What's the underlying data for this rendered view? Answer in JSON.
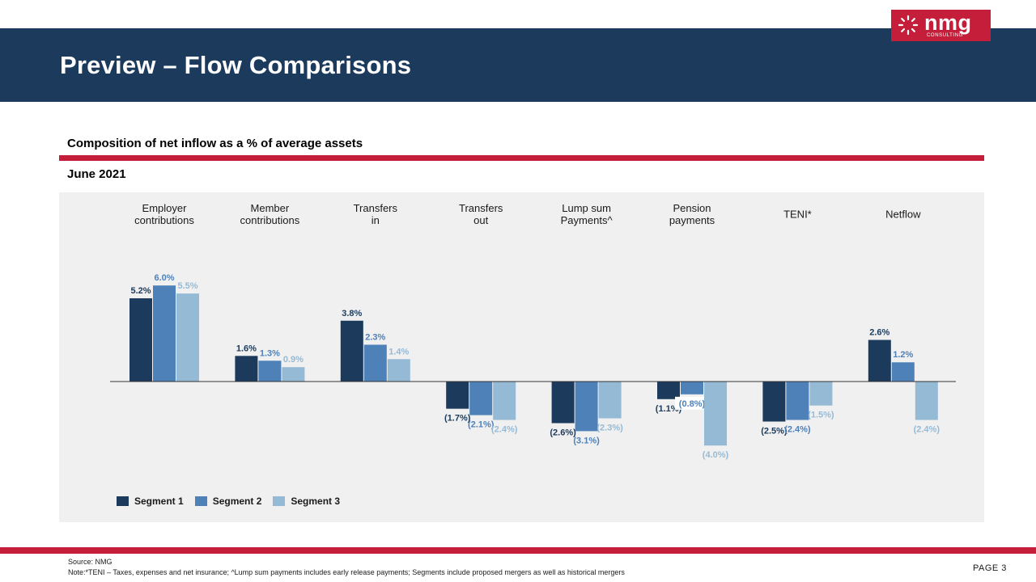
{
  "header": {
    "title": "Preview – Flow Comparisons",
    "logo": {
      "text": "nmg",
      "subtext": "CONSULTING",
      "color": "#c41e3a"
    }
  },
  "subtitle": "Composition of net inflow as a % of average assets",
  "date_label": "June 2021",
  "chart_data": {
    "type": "bar",
    "categories": [
      [
        "Employer",
        "contributions"
      ],
      [
        "Member",
        "contributions"
      ],
      [
        "Transfers",
        "in"
      ],
      [
        "Transfers",
        "out"
      ],
      [
        "Lump sum",
        "Payments^"
      ],
      [
        "Pension",
        "payments"
      ],
      [
        "TENI*"
      ],
      [
        "Netflow"
      ]
    ],
    "series": [
      {
        "name": "Segment 1",
        "color": "#1b3a5c",
        "values": [
          5.2,
          1.6,
          3.8,
          -1.7,
          -2.6,
          -1.1,
          -2.5,
          2.6
        ],
        "labels": [
          "5.2%",
          "1.6%",
          "3.8%",
          "(1.7%)",
          "(2.6%)",
          "(1.1%)",
          "(2.5%)",
          "2.6%"
        ]
      },
      {
        "name": "Segment 2",
        "color": "#4f81b9",
        "values": [
          6.0,
          1.3,
          2.3,
          -2.1,
          -3.1,
          -0.8,
          -2.4,
          1.2
        ],
        "labels": [
          "6.0%",
          "1.3%",
          "2.3%",
          "(2.1%)",
          "(3.1%)",
          "(0.8%)",
          "(2.4%)",
          "1.2%"
        ]
      },
      {
        "name": "Segment 3",
        "color": "#95bad6",
        "values": [
          5.5,
          0.9,
          1.4,
          -2.4,
          -2.3,
          -4.0,
          -1.5,
          -2.4
        ],
        "labels": [
          "5.5%",
          "0.9%",
          "1.4%",
          "(2.4%)",
          "(2.3%)",
          "(4.0%)",
          "(1.5%)",
          "(2.4%)"
        ]
      }
    ],
    "legend_position": "bottom-left",
    "grid": false
  },
  "footer": {
    "source": "Source: NMG",
    "note": "Note:*TENI – Taxes, expenses and net insurance; ^Lump sum payments includes early release payments; Segments include proposed mergers as well as historical mergers",
    "page": "PAGE 3"
  }
}
